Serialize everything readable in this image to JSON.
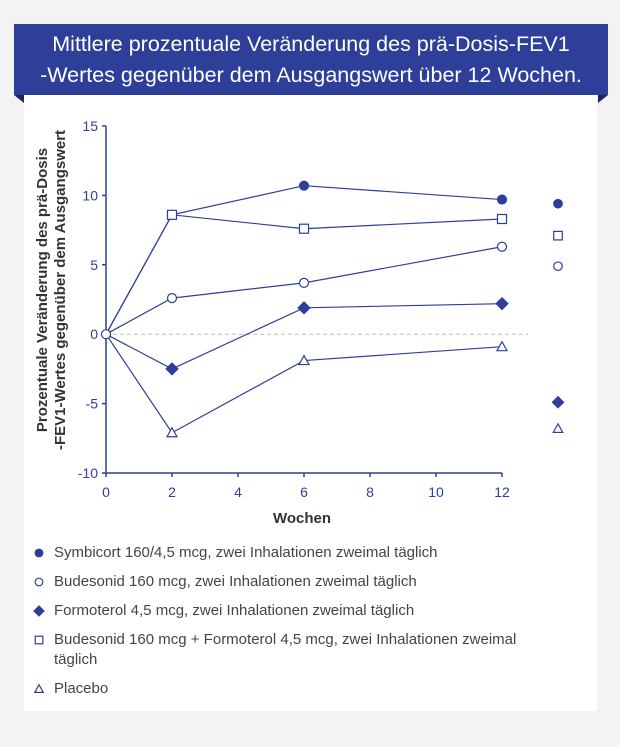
{
  "chart_data": {
    "type": "line",
    "title": "Mittlere prozentuale Veränderung des prä-Dosis-FEV1 -Wertes gegenüber dem Ausgangswert über 12 Wochen.",
    "title_lines": [
      "Mittlere prozentuale Veränderung des prä-Dosis-FEV1",
      "-Wertes gegenüber dem Ausgangswert über 12 Wochen."
    ],
    "xlabel": "Wochen",
    "ylabel_lines": [
      "Prozentuale Veränderung des prä-Dosis",
      "-FEV1-Wertes gegenüber dem Ausgangswert"
    ],
    "xlim": [
      0,
      12
    ],
    "ylim": [
      -10,
      15
    ],
    "xticks": [
      0,
      2,
      4,
      6,
      8,
      10,
      12
    ],
    "yticks": [
      -10,
      -5,
      0,
      5,
      10,
      15
    ],
    "reference_line": 0,
    "grid": false,
    "legend_position": "bottom",
    "x": [
      0,
      2,
      6,
      12
    ],
    "series": [
      {
        "name": "Symbicort 160/4,5 mcg, zwei Inhalationen zweimal täglich",
        "marker": "filled-circle",
        "values": [
          0,
          8.6,
          10.7,
          9.7
        ],
        "side_marker": 9.4
      },
      {
        "name": "Budesonid 160 mcg, zwei Inhalationen zweimal täglich",
        "marker": "open-circle",
        "values": [
          0,
          2.6,
          3.7,
          6.3
        ],
        "side_marker": 4.9
      },
      {
        "name": "Formoterol 4,5 mcg, zwei Inhalationen zweimal täglich",
        "marker": "filled-diamond",
        "values": [
          0,
          -2.5,
          1.9,
          2.2
        ],
        "side_marker": -4.9
      },
      {
        "name": "Budesonid 160 mcg + Formoterol 4,5 mcg, zwei Inhalationen zweimal täglich",
        "marker": "open-square",
        "values": [
          0,
          8.6,
          7.6,
          8.3
        ],
        "side_marker": 7.1
      },
      {
        "name": "Placebo",
        "marker": "open-triangle",
        "values": [
          0,
          -7.1,
          -1.9,
          -0.9
        ],
        "side_marker": -6.8
      }
    ],
    "colors": {
      "series": "#2e3f99",
      "banner": "#2e3f99",
      "reference": "#bbbbbb"
    }
  }
}
